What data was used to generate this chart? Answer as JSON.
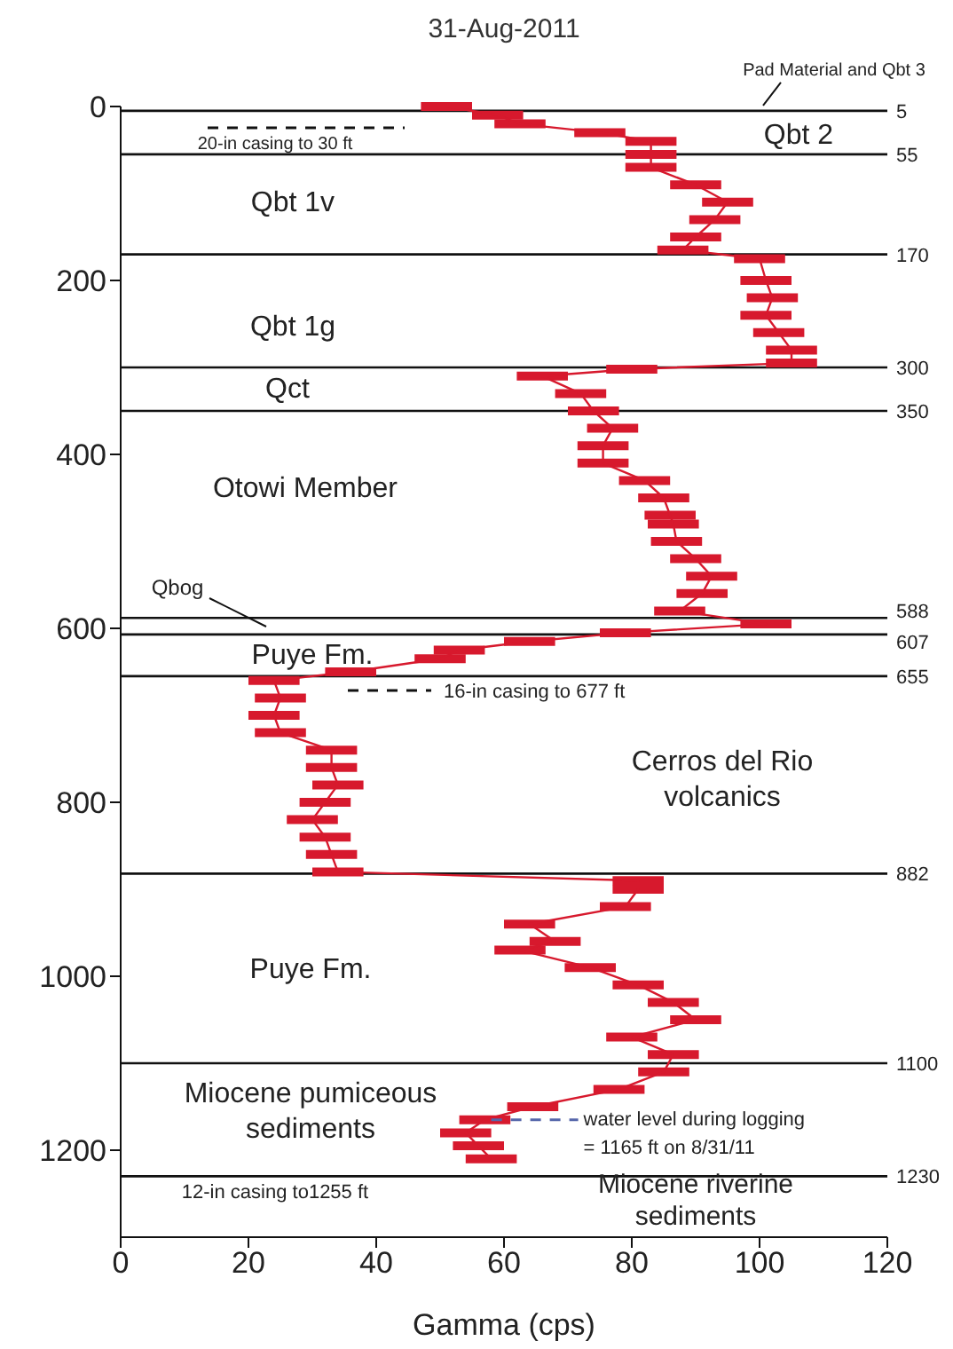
{
  "chart_data": {
    "type": "line",
    "title": "31-Aug-2011",
    "xlabel": "Gamma (cps)",
    "xlim": [
      0,
      120
    ],
    "xticks": [
      0,
      20,
      40,
      60,
      80,
      100,
      120
    ],
    "ylim": [
      1300,
      0
    ],
    "yticks": [
      0,
      200,
      400,
      600,
      800,
      1000,
      1200
    ],
    "series": [
      {
        "color": "#d7192d",
        "x": [
          51,
          59,
          62.5,
          75,
          83,
          83,
          83,
          90,
          95,
          93,
          90,
          88,
          100,
          101,
          102,
          101,
          103,
          105,
          105,
          80,
          66,
          72,
          74,
          77,
          75.5,
          75.5,
          82,
          85,
          86,
          86.5,
          87,
          90,
          92.5,
          91,
          87.5,
          101,
          79,
          64,
          53,
          50,
          36,
          24,
          25,
          24,
          25,
          33,
          33,
          34,
          32,
          30,
          32,
          33,
          34,
          81,
          81,
          79,
          64,
          68,
          62.5,
          73.5,
          81,
          86.5,
          90,
          80,
          86.5,
          85,
          78,
          64.5,
          57,
          54,
          56,
          58
        ],
        "values": [
          0,
          10,
          20,
          30,
          40,
          55,
          70,
          90,
          110,
          130,
          150,
          165,
          175,
          200,
          220,
          240,
          260,
          280,
          295,
          302,
          310,
          330,
          350,
          370,
          390,
          410,
          430,
          450,
          470,
          480,
          500,
          520,
          540,
          560,
          580,
          595,
          605,
          615,
          625,
          635,
          650,
          660,
          680,
          700,
          720,
          740,
          760,
          780,
          800,
          820,
          840,
          860,
          880,
          890,
          900,
          920,
          940,
          960,
          970,
          990,
          1010,
          1030,
          1050,
          1070,
          1090,
          1110,
          1130,
          1150,
          1165,
          1180,
          1195,
          1210
        ],
        "xerrors": [
          4,
          4,
          4,
          4,
          4,
          4,
          4,
          4,
          4,
          4,
          4,
          4,
          4,
          4,
          4,
          4,
          4,
          4,
          4,
          4,
          4,
          4,
          4,
          4,
          4,
          4,
          4,
          4,
          4,
          4,
          4,
          4,
          4,
          4,
          4,
          4,
          4,
          4,
          4,
          4,
          4,
          4,
          4,
          4,
          4,
          4,
          4,
          4,
          4,
          4,
          4,
          4,
          4,
          4,
          4,
          4,
          4,
          4,
          4,
          4,
          4,
          4,
          4,
          4,
          4,
          4,
          4,
          4,
          4,
          4,
          4,
          4
        ]
      }
    ],
    "ref_lines": [
      {
        "axis": "y",
        "value": 5,
        "label": "5"
      },
      {
        "axis": "y",
        "value": 55,
        "label": "55"
      },
      {
        "axis": "y",
        "value": 170,
        "label": "170"
      },
      {
        "axis": "y",
        "value": 300,
        "label": "300"
      },
      {
        "axis": "y",
        "value": 350,
        "label": "350"
      },
      {
        "axis": "y",
        "value": 588,
        "label": "588"
      },
      {
        "axis": "y",
        "value": 607,
        "label": "607"
      },
      {
        "axis": "y",
        "value": 655,
        "label": "655"
      },
      {
        "axis": "y",
        "value": 882,
        "label": "882"
      },
      {
        "axis": "y",
        "value": 1100,
        "label": "1100"
      },
      {
        "axis": "y",
        "value": 1230,
        "label": "1230"
      }
    ],
    "annotations": [
      {
        "text": "Pad Material and Qbt 3",
        "x": 100,
        "y": 5
      },
      "Qbt 2",
      "Qbt 1v",
      "Qbt 1g",
      "Qct",
      "Otowi Member",
      "Qbog",
      "Puye Fm.",
      "Cerros del Rio volcanics",
      "Puye Fm.",
      "Miocene pumiceous sediments",
      "Miocene riverine sediments",
      "20-in casing to 30 ft",
      "16-in casing to 677 ft",
      "12-in casing to1255 ft",
      {
        "text": "water level during logging = 1165 ft on 8/31/11",
        "x": 58,
        "y": 1165
      }
    ]
  }
}
